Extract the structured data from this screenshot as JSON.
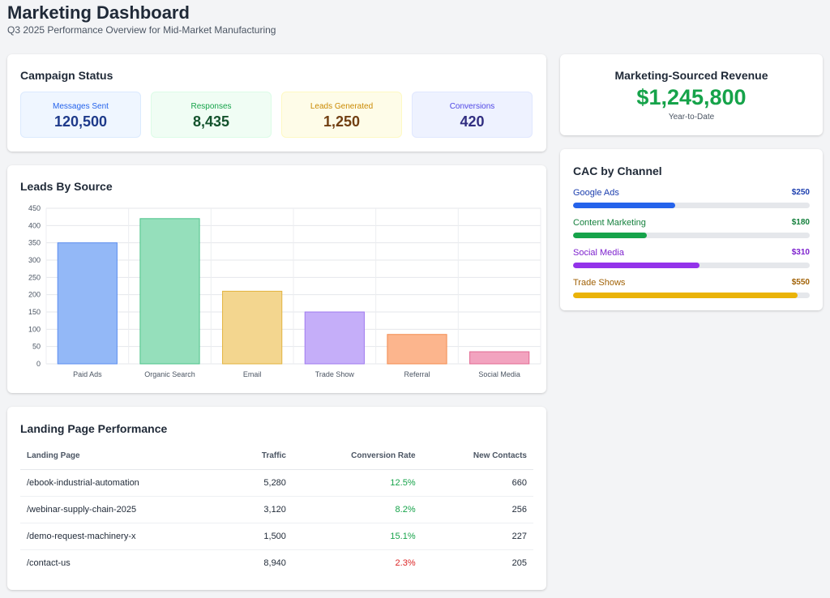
{
  "header": {
    "title": "Marketing Dashboard",
    "subtitle": "Q3 2025 Performance Overview for Mid-Market Manufacturing"
  },
  "campaign_status": {
    "title": "Campaign Status",
    "stats": [
      {
        "label": "Messages Sent",
        "value": "120,500",
        "label_color": "#2563eb",
        "value_color": "#1e3a8a",
        "bg": "#eff6ff",
        "border": "#dbeafe"
      },
      {
        "label": "Responses",
        "value": "8,435",
        "label_color": "#16a34a",
        "value_color": "#14532d",
        "bg": "#f0fdf4",
        "border": "#dcfce7"
      },
      {
        "label": "Leads Generated",
        "value": "1,250",
        "label_color": "#ca8a04",
        "value_color": "#713f12",
        "bg": "#fefce8",
        "border": "#fef9c3"
      },
      {
        "label": "Conversions",
        "value": "420",
        "label_color": "#4f46e5",
        "value_color": "#312e81",
        "bg": "#eef2ff",
        "border": "#e0e7ff"
      }
    ]
  },
  "revenue": {
    "title": "Marketing-Sourced Revenue",
    "value": "$1,245,800",
    "subtitle": "Year-to-Date"
  },
  "cac": {
    "title": "CAC by Channel",
    "max_value": 580,
    "channels": [
      {
        "name": "Google Ads",
        "value": 250,
        "amount": "$250",
        "color": "#2563eb",
        "text_color": "#1e40af"
      },
      {
        "name": "Content Marketing",
        "value": 180,
        "amount": "$180",
        "color": "#16a34a",
        "text_color": "#15803d"
      },
      {
        "name": "Social Media",
        "value": 310,
        "amount": "$310",
        "color": "#9333ea",
        "text_color": "#7e22ce"
      },
      {
        "name": "Trade Shows",
        "value": 550,
        "amount": "$550",
        "color": "#eab308",
        "text_color": "#a16207"
      }
    ]
  },
  "chart_data": {
    "type": "bar",
    "title": "Leads By Source",
    "categories": [
      "Paid Ads",
      "Organic Search",
      "Email",
      "Trade Show",
      "Referral",
      "Social Media"
    ],
    "values": [
      350,
      420,
      210,
      150,
      85,
      35
    ],
    "ylim": [
      0,
      450
    ],
    "yticks": [
      0,
      50,
      100,
      150,
      200,
      250,
      300,
      350,
      400,
      450
    ],
    "xlabel": "",
    "ylabel": "",
    "grid": true,
    "colors": [
      {
        "fill": "#93b8f7",
        "stroke": "#5b8ef0"
      },
      {
        "fill": "#95dfbb",
        "stroke": "#4cc38a"
      },
      {
        "fill": "#f3d68f",
        "stroke": "#e2b33e"
      },
      {
        "fill": "#c5aef9",
        "stroke": "#9f7aef"
      },
      {
        "fill": "#fcb58d",
        "stroke": "#f38c50"
      },
      {
        "fill": "#f2a3bf",
        "stroke": "#e26892"
      }
    ]
  },
  "landing": {
    "title": "Landing Page Performance",
    "columns": [
      "Landing Page",
      "Traffic",
      "Conversion Rate",
      "New Contacts"
    ],
    "rows": [
      {
        "page": "/ebook-industrial-automation",
        "traffic": "5,280",
        "rate": "12.5%",
        "rate_color": "#16a34a",
        "contacts": "660"
      },
      {
        "page": "/webinar-supply-chain-2025",
        "traffic": "3,120",
        "rate": "8.2%",
        "rate_color": "#16a34a",
        "contacts": "256"
      },
      {
        "page": "/demo-request-machinery-x",
        "traffic": "1,500",
        "rate": "15.1%",
        "rate_color": "#16a34a",
        "contacts": "227"
      },
      {
        "page": "/contact-us",
        "traffic": "8,940",
        "rate": "2.3%",
        "rate_color": "#dc2626",
        "contacts": "205"
      }
    ]
  }
}
